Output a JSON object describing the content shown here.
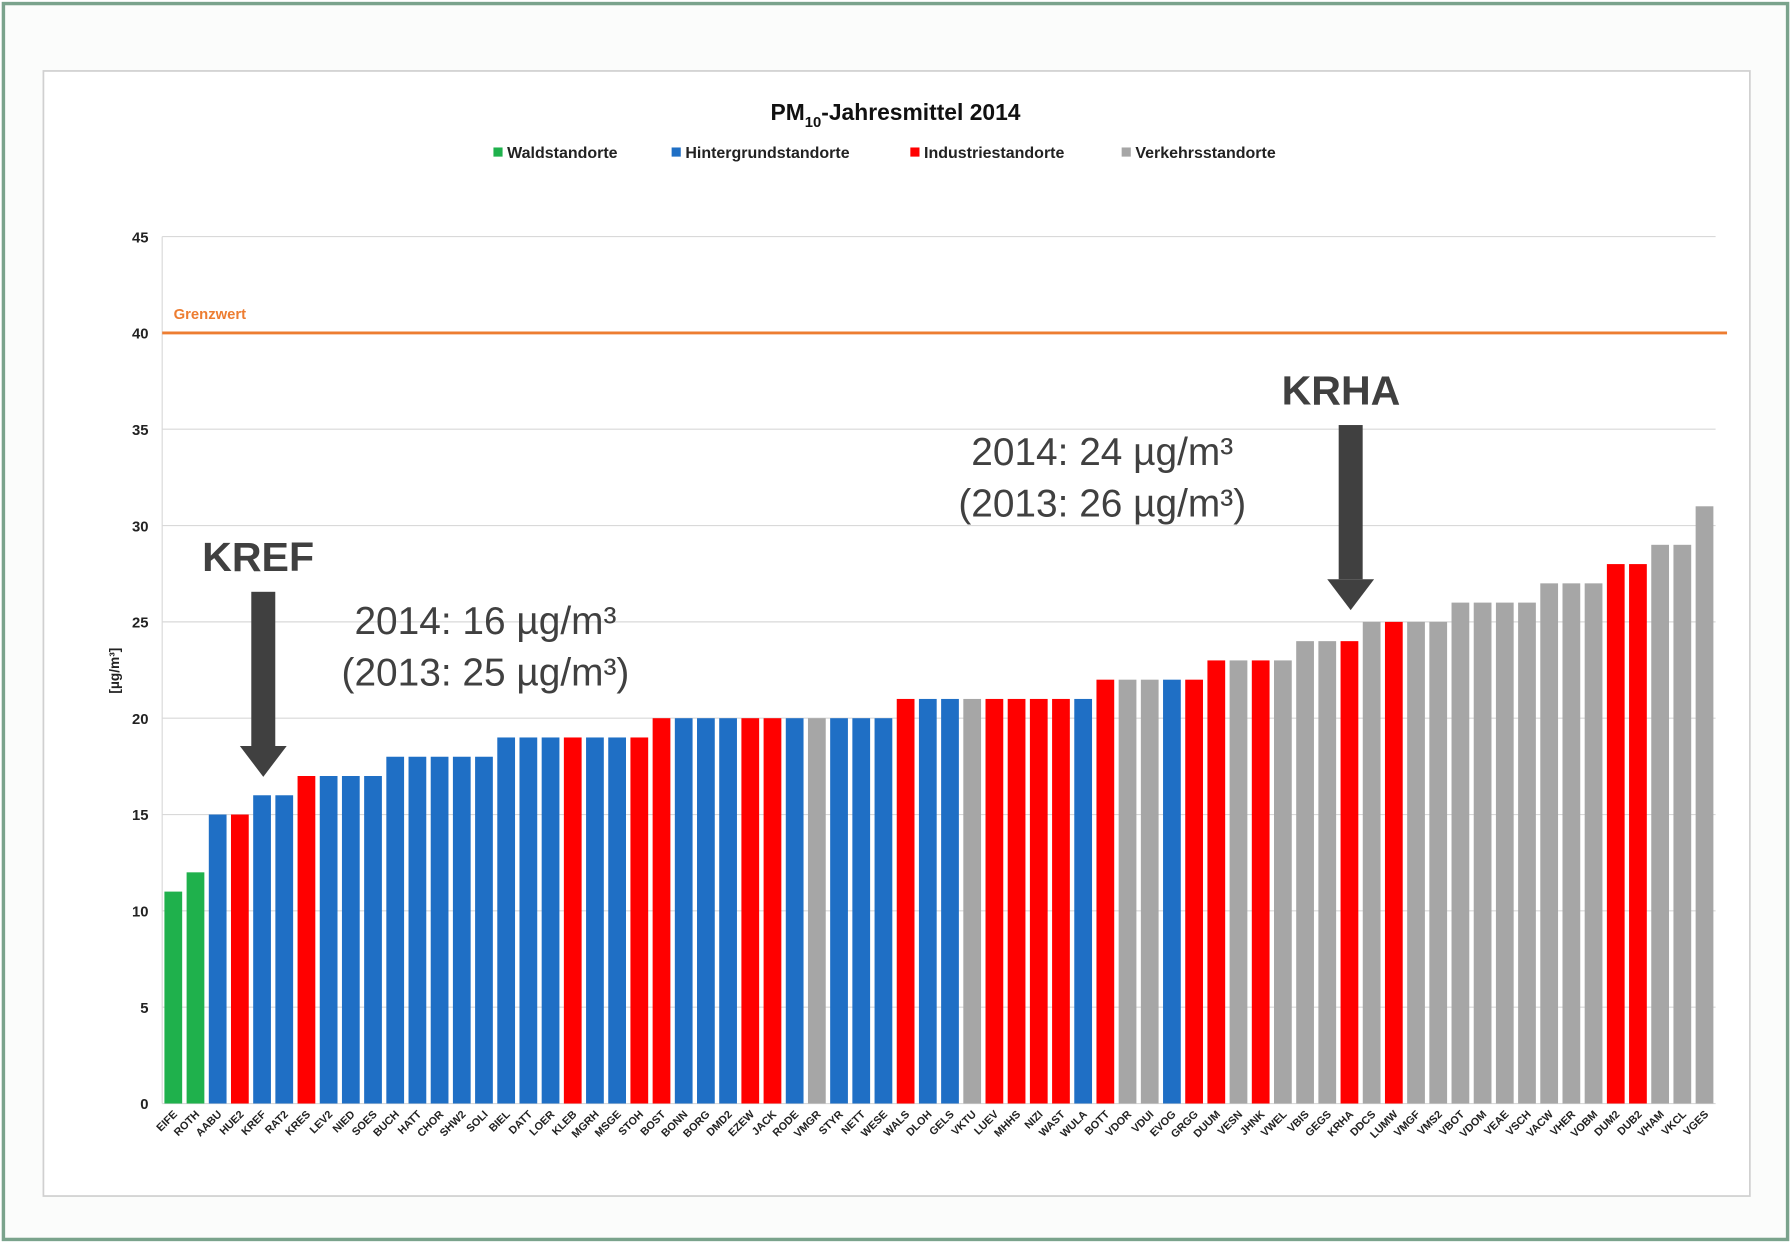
{
  "chart_data": {
    "type": "bar",
    "title": {
      "main": "PM",
      "sub": "10",
      "rest": "-Jahresmittel 2014"
    },
    "ylabel": "[µg/m³]",
    "legend": [
      {
        "name": "Waldstandorte",
        "color": "#1fb14c"
      },
      {
        "name": "Hintergrundstandorte",
        "color": "#1f6fc5"
      },
      {
        "name": "Industriestandorte",
        "color": "#ff0000"
      },
      {
        "name": "Verkehrsstandorte",
        "color": "#a6a6a6"
      }
    ],
    "categories": [
      "EIFE",
      "ROTH",
      "AABU",
      "HUE2",
      "KREF",
      "RAT2",
      "KRES",
      "LEV2",
      "NIED",
      "SOES",
      "BUCH",
      "HATT",
      "CHOR",
      "SHW2",
      "SOLI",
      "BIEL",
      "DATT",
      "LOER",
      "KLEB",
      "MGRH",
      "MSGE",
      "STOH",
      "BOST",
      "BONN",
      "BORG",
      "DMD2",
      "EZEW",
      "JACK",
      "RODE",
      "VMGR",
      "STYR",
      "NETT",
      "WESE",
      "WALS",
      "DLOH",
      "GELS",
      "VKTU",
      "LUEV",
      "MHHS",
      "NIZI",
      "WAST",
      "WULA",
      "BOTT",
      "VDOR",
      "VDUI",
      "EVOG",
      "GRGG",
      "DUUM",
      "VESN",
      "JHNK",
      "VWEL",
      "VBIS",
      "GEGS",
      "KRHA",
      "DDCS",
      "LUMW",
      "VMGF",
      "VMS2",
      "VBOT",
      "VDOM",
      "VEAE",
      "VSCH",
      "VACW",
      "VHER",
      "VOBM",
      "DUM2",
      "DUB2",
      "VHAM",
      "VKCL",
      "VGES"
    ],
    "values": [
      11,
      12,
      15,
      15,
      16,
      16,
      17,
      17,
      17,
      17,
      18,
      18,
      18,
      18,
      18,
      19,
      19,
      19,
      19,
      19,
      19,
      19,
      20,
      20,
      20,
      20,
      20,
      20,
      20,
      20,
      20,
      20,
      20,
      21,
      21,
      21,
      21,
      21,
      21,
      21,
      21,
      21,
      22,
      22,
      22,
      22,
      22,
      23,
      23,
      23,
      23,
      24,
      24,
      24,
      25,
      25,
      25,
      25,
      26,
      26,
      26,
      26,
      27,
      27,
      27,
      28,
      28,
      29,
      29,
      31
    ],
    "colors": [
      "#1fb14c",
      "#1fb14c",
      "#1f6fc5",
      "#ff0000",
      "#1f6fc5",
      "#1f6fc5",
      "#ff0000",
      "#1f6fc5",
      "#1f6fc5",
      "#1f6fc5",
      "#1f6fc5",
      "#1f6fc5",
      "#1f6fc5",
      "#1f6fc5",
      "#1f6fc5",
      "#1f6fc5",
      "#1f6fc5",
      "#1f6fc5",
      "#ff0000",
      "#1f6fc5",
      "#1f6fc5",
      "#ff0000",
      "#ff0000",
      "#1f6fc5",
      "#1f6fc5",
      "#1f6fc5",
      "#ff0000",
      "#ff0000",
      "#1f6fc5",
      "#a6a6a6",
      "#1f6fc5",
      "#1f6fc5",
      "#1f6fc5",
      "#ff0000",
      "#1f6fc5",
      "#1f6fc5",
      "#a6a6a6",
      "#ff0000",
      "#ff0000",
      "#ff0000",
      "#ff0000",
      "#1f6fc5",
      "#ff0000",
      "#a6a6a6",
      "#a6a6a6",
      "#1f6fc5",
      "#ff0000",
      "#ff0000",
      "#a6a6a6",
      "#ff0000",
      "#a6a6a6",
      "#a6a6a6",
      "#a6a6a6",
      "#ff0000",
      "#a6a6a6",
      "#ff0000",
      "#a6a6a6",
      "#a6a6a6",
      "#a6a6a6",
      "#a6a6a6",
      "#a6a6a6",
      "#a6a6a6",
      "#a6a6a6",
      "#a6a6a6",
      "#a6a6a6",
      "#ff0000",
      "#ff0000",
      "#a6a6a6",
      "#a6a6a6",
      "#a6a6a6"
    ],
    "ylim": [
      0,
      45
    ],
    "yticks": [
      0,
      5,
      10,
      15,
      20,
      25,
      30,
      35,
      40,
      45
    ],
    "grid": true,
    "limit_line": {
      "label": "Grenzwert",
      "value": 40,
      "color": "#ed7d31"
    },
    "annotations": [
      {
        "station": "KREF",
        "text_2014": "2014: 16 µg/m³",
        "text_2013": "(2013: 25 µg/m³)"
      },
      {
        "station": "KRHA",
        "text_2014": "2014: 24 µg/m³",
        "text_2013": "(2013: 26 µg/m³)"
      }
    ]
  }
}
